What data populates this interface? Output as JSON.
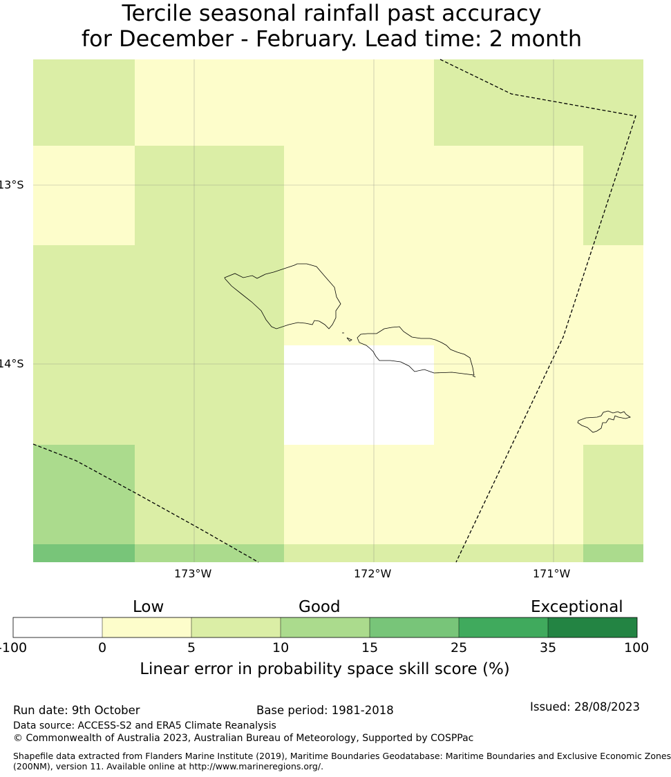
{
  "title": {
    "line1": "Tercile seasonal rainfall past accuracy",
    "line2": "for December - February. Lead time: 2 month"
  },
  "map": {
    "lat_ticks": [
      "13°S",
      "14°S"
    ],
    "lon_ticks": [
      "173°W",
      "172°W",
      "171°W"
    ],
    "colors": {
      "skill_0_5": "#fdfdcb",
      "skill_5_10": "#dbeea6",
      "skill_10_15": "#abdb8d",
      "skill_15_25": "#78c579",
      "below_0": "#ffffff"
    }
  },
  "colorbar": {
    "categories": [
      "Low",
      "Good",
      "Exceptional"
    ],
    "tick_labels": [
      "-100",
      "0",
      "5",
      "10",
      "15",
      "25",
      "35",
      "100"
    ],
    "colors": [
      "#ffffff",
      "#fdfdcb",
      "#dbeea6",
      "#abdb8d",
      "#78c579",
      "#40aa5d",
      "#238443"
    ],
    "label": "Linear error in probability space skill score (%)"
  },
  "footer": {
    "run_date": "Run date: 9th October",
    "base_period": "Base period: 1981-2018",
    "issued": "Issued: 28/08/2023",
    "data_source": "Data source: ACCESS-S2 and ERA5 Climate Reanalysis",
    "copyright": "© Commonwealth of Australia 2023, Australian Bureau of Meteorology, Supported by COSPPac",
    "shapefile_line1": "Shapefile data extracted from Flanders Marine Institute (2019), Maritime Boundaries Geodatabase: Maritime Boundaries and Exclusive Economic Zones",
    "shapefile_line2": "(200NM), version 11. Available online at http://www.marineregions.org/."
  }
}
